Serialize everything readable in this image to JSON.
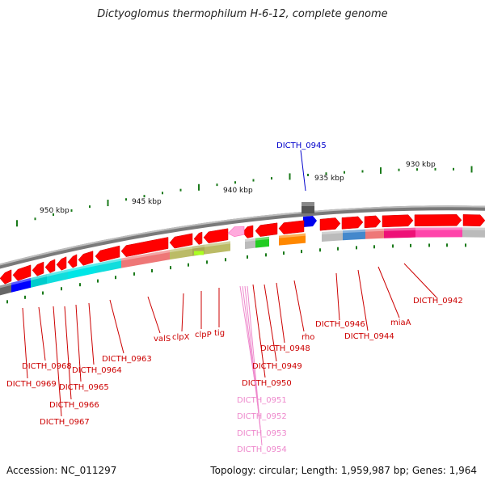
{
  "header": {
    "title": "Dictyoglomus thermophilum H-6-12, complete genome"
  },
  "footer": {
    "accession": "Accession: NC_011297",
    "summary": "Topology: circular; Length: 1,959,987 bp; Genes: 1,964"
  },
  "scale_ticks": [
    "930 kbp",
    "935 kbp",
    "940 kbp",
    "945 kbp",
    "950 kbp"
  ],
  "highlight_gene": "DICTH_0945",
  "gene_labels": [
    {
      "text": "DICTH_0942",
      "group": "red"
    },
    {
      "text": "miaA",
      "group": "red"
    },
    {
      "text": "DICTH_0944",
      "group": "red"
    },
    {
      "text": "DICTH_0946",
      "group": "red"
    },
    {
      "text": "rho",
      "group": "red"
    },
    {
      "text": "DICTH_0948",
      "group": "red"
    },
    {
      "text": "DICTH_0949",
      "group": "red"
    },
    {
      "text": "DICTH_0950",
      "group": "red"
    },
    {
      "text": "DICTH_0951",
      "group": "pink"
    },
    {
      "text": "DICTH_0952",
      "group": "pink"
    },
    {
      "text": "DICTH_0953",
      "group": "pink"
    },
    {
      "text": "DICTH_0954",
      "group": "pink"
    },
    {
      "text": "tig",
      "group": "red"
    },
    {
      "text": "clpP",
      "group": "red"
    },
    {
      "text": "clpX",
      "group": "red"
    },
    {
      "text": "valS",
      "group": "red"
    },
    {
      "text": "DICTH_0963",
      "group": "red"
    },
    {
      "text": "DICTH_0964",
      "group": "red"
    },
    {
      "text": "DICTH_0965",
      "group": "red"
    },
    {
      "text": "DICTH_0966",
      "group": "red"
    },
    {
      "text": "DICTH_0967",
      "group": "red"
    },
    {
      "text": "DICTH_0968",
      "group": "red"
    },
    {
      "text": "DICTH_0969",
      "group": "red"
    }
  ],
  "colors": {
    "gene_red": "#ff0000",
    "label_red": "#cc0000",
    "label_pink": "#ee88cc",
    "label_blue": "#0000cc",
    "backbone": "#888888",
    "tick_green": "#227722"
  }
}
